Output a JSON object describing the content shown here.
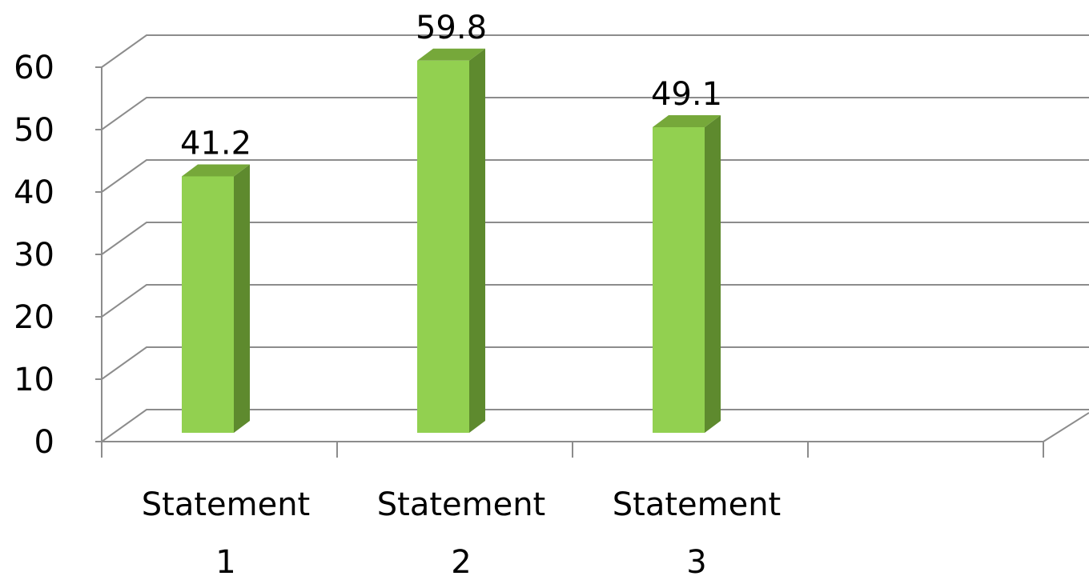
{
  "chart_data": {
    "type": "bar",
    "style": "3d-column",
    "title": "",
    "xlabel": "",
    "ylabel": "",
    "categories": [
      [
        "Statement",
        "1"
      ],
      [
        "Statement",
        "2"
      ],
      [
        "Statement",
        "3"
      ],
      [
        "",
        ""
      ]
    ],
    "values": [
      41.2,
      59.8,
      49.1,
      null
    ],
    "data_labels": [
      "41.2",
      "59.8",
      "49.1",
      ""
    ],
    "ylim": [
      0,
      60
    ],
    "yticks": [
      0,
      10,
      20,
      30,
      40,
      50,
      60
    ],
    "grid": true,
    "legend": "none",
    "colors": {
      "bar_front": "#92d050",
      "bar_side": "#5e8a2e",
      "bar_top": "#76a83a",
      "grid": "#8c8c8c"
    }
  }
}
